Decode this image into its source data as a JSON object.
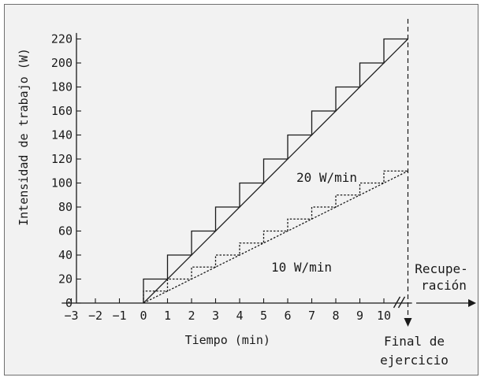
{
  "chart_data": {
    "type": "line",
    "xlabel": "Tiempo (min)",
    "ylabel": "Intensidad de trabajo (W)",
    "x_ticks": [
      -3,
      -2,
      -1,
      0,
      1,
      2,
      3,
      4,
      5,
      6,
      7,
      8,
      9,
      10
    ],
    "y_ticks": [
      0,
      20,
      40,
      60,
      80,
      100,
      120,
      140,
      160,
      180,
      200,
      220
    ],
    "xlim": [
      -3.4,
      11.3
    ],
    "ylim": [
      0,
      225
    ],
    "grid": false,
    "series": [
      {
        "name": "20 W/min",
        "kind": "step",
        "style": "solid",
        "step_x": [
          0,
          1,
          2,
          3,
          4,
          5,
          6,
          7,
          8,
          9,
          10,
          11
        ],
        "step_y": [
          20,
          40,
          60,
          80,
          100,
          120,
          140,
          160,
          180,
          200,
          220
        ]
      },
      {
        "name": "20 W/min",
        "kind": "ramp",
        "style": "solid",
        "x": [
          0,
          11
        ],
        "y": [
          0,
          220
        ]
      },
      {
        "name": "10 W/min",
        "kind": "step",
        "style": "dotted",
        "step_x": [
          0,
          1,
          2,
          3,
          4,
          5,
          6,
          7,
          8,
          9,
          10,
          11
        ],
        "step_y": [
          10,
          20,
          30,
          40,
          50,
          60,
          70,
          80,
          90,
          100,
          110
        ]
      },
      {
        "name": "10 W/min",
        "kind": "ramp",
        "style": "dotted",
        "x": [
          0,
          11
        ],
        "y": [
          0,
          110
        ]
      }
    ],
    "annotations": {
      "series_label_20": "20 W/min",
      "series_label_10": "10 W/min",
      "end_marker_x": 11,
      "end_label_line1": "Final de",
      "end_label_line2": "ejercicio",
      "recovery_line1": "Recupe-",
      "recovery_line2": "ración"
    }
  }
}
